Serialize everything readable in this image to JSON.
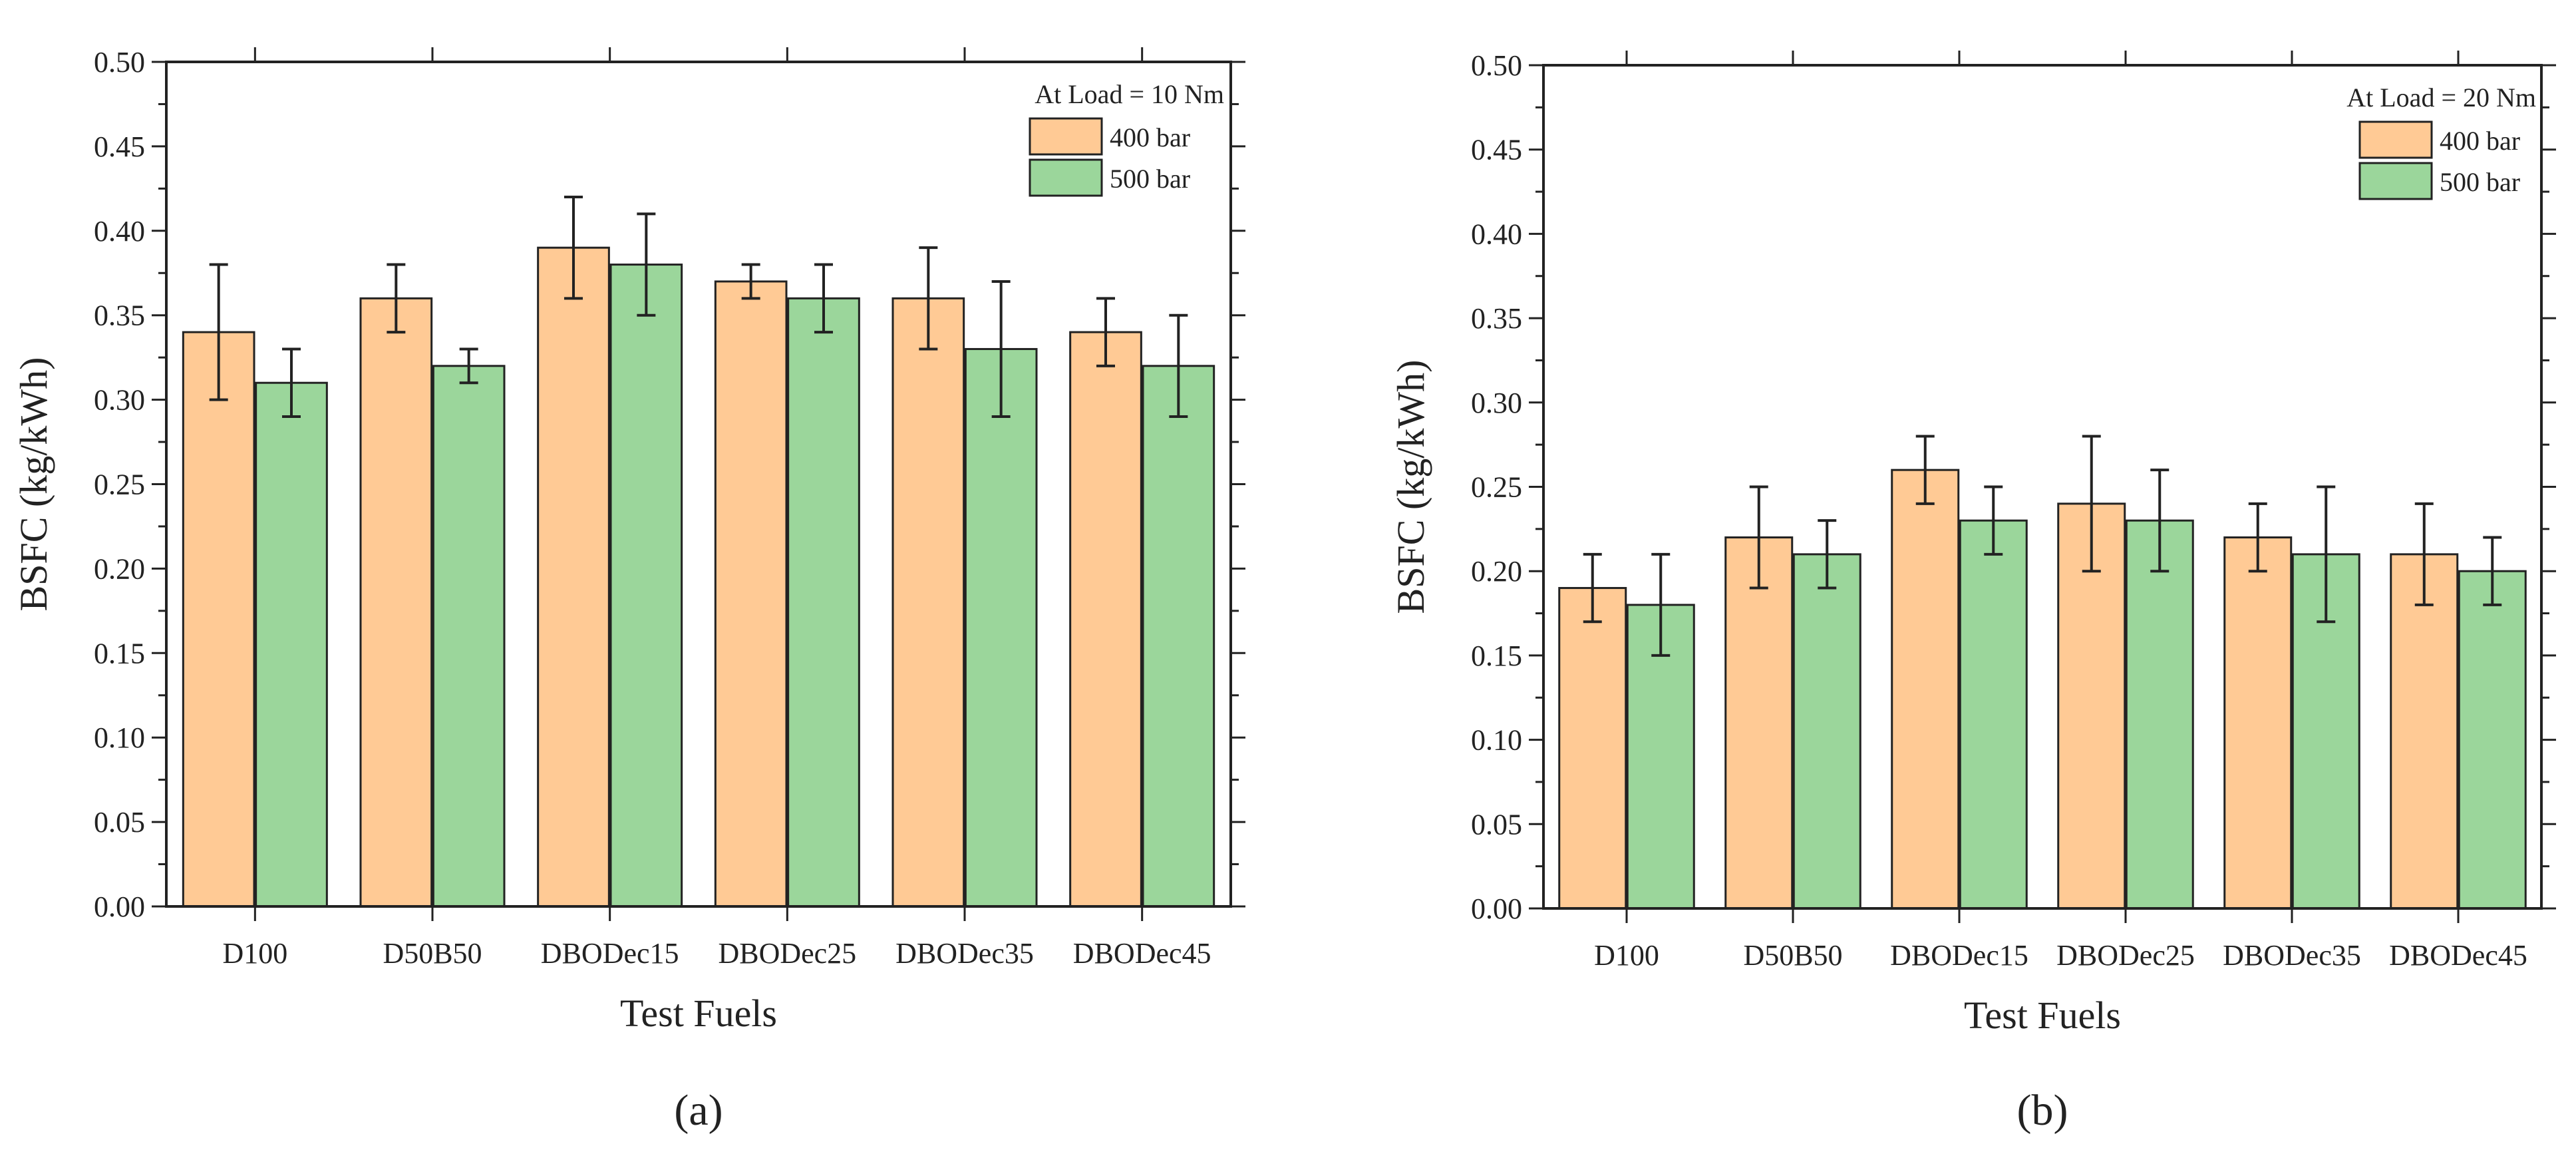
{
  "figure": {
    "colors": {
      "s400": "#FFCA95",
      "s500": "#9BD69B",
      "axis": "#222222"
    }
  },
  "chart_data": [
    {
      "type": "bar",
      "panel_label": "(a)",
      "title": "",
      "annotation": "At Load = 10 Nm",
      "xlabel": "Test Fuels",
      "ylabel": "BSFC (kg/kWh)",
      "ylim": [
        0,
        0.5
      ],
      "yticks": [
        "0.00",
        "0.05",
        "0.10",
        "0.15",
        "0.20",
        "0.25",
        "0.30",
        "0.35",
        "0.40",
        "0.45",
        "0.50"
      ],
      "categories": [
        "D100",
        "D50B50",
        "DBODec15",
        "DBODec25",
        "DBODec35",
        "DBODec45"
      ],
      "legend_position": "top-right",
      "grid": false,
      "series": [
        {
          "name": "400 bar",
          "values": [
            0.34,
            0.36,
            0.39,
            0.37,
            0.36,
            0.34
          ],
          "err_low": [
            0.3,
            0.34,
            0.36,
            0.36,
            0.33,
            0.32
          ],
          "err_high": [
            0.38,
            0.38,
            0.42,
            0.38,
            0.39,
            0.36
          ]
        },
        {
          "name": "500 bar",
          "values": [
            0.31,
            0.32,
            0.38,
            0.36,
            0.33,
            0.32
          ],
          "err_low": [
            0.29,
            0.31,
            0.35,
            0.34,
            0.29,
            0.29
          ],
          "err_high": [
            0.33,
            0.33,
            0.41,
            0.38,
            0.37,
            0.35
          ]
        }
      ]
    },
    {
      "type": "bar",
      "panel_label": "(b)",
      "title": "",
      "annotation": "At Load = 20 Nm",
      "xlabel": "Test Fuels",
      "ylabel": "BSFC (kg/kWh)",
      "ylim": [
        0,
        0.5
      ],
      "yticks": [
        "0.00",
        "0.05",
        "0.10",
        "0.15",
        "0.20",
        "0.25",
        "0.30",
        "0.35",
        "0.40",
        "0.45",
        "0.50"
      ],
      "categories": [
        "D100",
        "D50B50",
        "DBODec15",
        "DBODec25",
        "DBODec35",
        "DBODec45"
      ],
      "legend_position": "top-right",
      "grid": false,
      "series": [
        {
          "name": "400 bar",
          "values": [
            0.19,
            0.22,
            0.26,
            0.24,
            0.22,
            0.21
          ],
          "err_low": [
            0.17,
            0.19,
            0.24,
            0.2,
            0.2,
            0.18
          ],
          "err_high": [
            0.21,
            0.25,
            0.28,
            0.28,
            0.24,
            0.24
          ]
        },
        {
          "name": "500 bar",
          "values": [
            0.18,
            0.21,
            0.23,
            0.23,
            0.21,
            0.2
          ],
          "err_low": [
            0.15,
            0.19,
            0.21,
            0.2,
            0.17,
            0.18
          ],
          "err_high": [
            0.21,
            0.23,
            0.25,
            0.26,
            0.25,
            0.22
          ]
        }
      ]
    }
  ]
}
